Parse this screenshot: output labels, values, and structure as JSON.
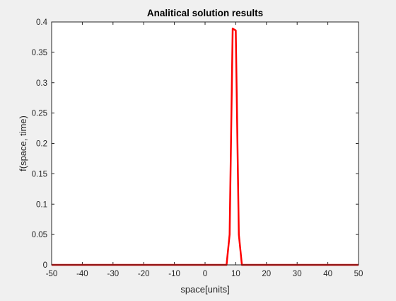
{
  "window": {
    "background": "#f0f0f0"
  },
  "chart_data": {
    "type": "line",
    "title": "Analitical solution results",
    "xlabel": "space[units]",
    "ylabel": "f(space, time)",
    "xlim": [
      -50,
      50
    ],
    "ylim": [
      0,
      0.4
    ],
    "xticks": [
      -50,
      -40,
      -30,
      -20,
      -10,
      0,
      10,
      20,
      30,
      40,
      50
    ],
    "yticks": [
      0,
      0.05,
      0.1,
      0.15,
      0.2,
      0.25,
      0.3,
      0.35,
      0.4
    ],
    "xtick_labels": [
      "-50",
      "-40",
      "-30",
      "-20",
      "-10",
      "0",
      "10",
      "20",
      "30",
      "40",
      "50"
    ],
    "ytick_labels": [
      "0",
      "0.05",
      "0.1",
      "0.15",
      "0.2",
      "0.25",
      "0.3",
      "0.35",
      "0.4"
    ],
    "grid": false,
    "series": [
      {
        "color": "#ff0000",
        "x": [
          -50,
          7,
          8,
          9,
          10,
          11,
          12,
          50
        ],
        "y": [
          0,
          0,
          0.05,
          0.389,
          0.386,
          0.05,
          0,
          0
        ]
      }
    ]
  }
}
